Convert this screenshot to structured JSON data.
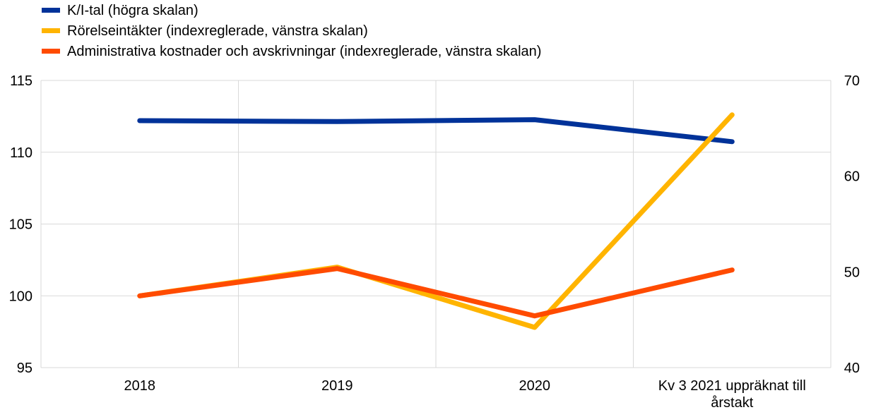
{
  "chart_data": {
    "type": "line",
    "categories": [
      "2018",
      "2019",
      "2020",
      "Kv 3 2021 uppräknat till årstakt"
    ],
    "category_lines": [
      [
        "2018"
      ],
      [
        "2019"
      ],
      [
        "2020"
      ],
      [
        "Kv 3 2021 uppräknat till",
        "årstakt"
      ]
    ],
    "series": [
      {
        "name": "K/I-tal (högra skalan)",
        "axis": "right",
        "color": "#003299",
        "values": [
          65.8,
          65.7,
          65.9,
          63.6
        ]
      },
      {
        "name": "Rörelseintäkter (indexreglerade, vänstra skalan)",
        "axis": "left",
        "color": "#FFB400",
        "values": [
          100.0,
          102.0,
          97.8,
          112.6
        ]
      },
      {
        "name": "Administrativa kostnader och avskrivningar (indexreglerade, vänstra skalan)",
        "axis": "left",
        "color": "#FF4B00",
        "values": [
          100.0,
          101.9,
          98.6,
          101.8
        ]
      }
    ],
    "y_left": {
      "min": 95,
      "max": 115,
      "ticks": [
        95,
        100,
        105,
        110,
        115
      ]
    },
    "y_right": {
      "min": 40,
      "max": 70,
      "ticks": [
        40,
        50,
        60,
        70
      ]
    },
    "grid": true,
    "legend_position": "top-left"
  }
}
